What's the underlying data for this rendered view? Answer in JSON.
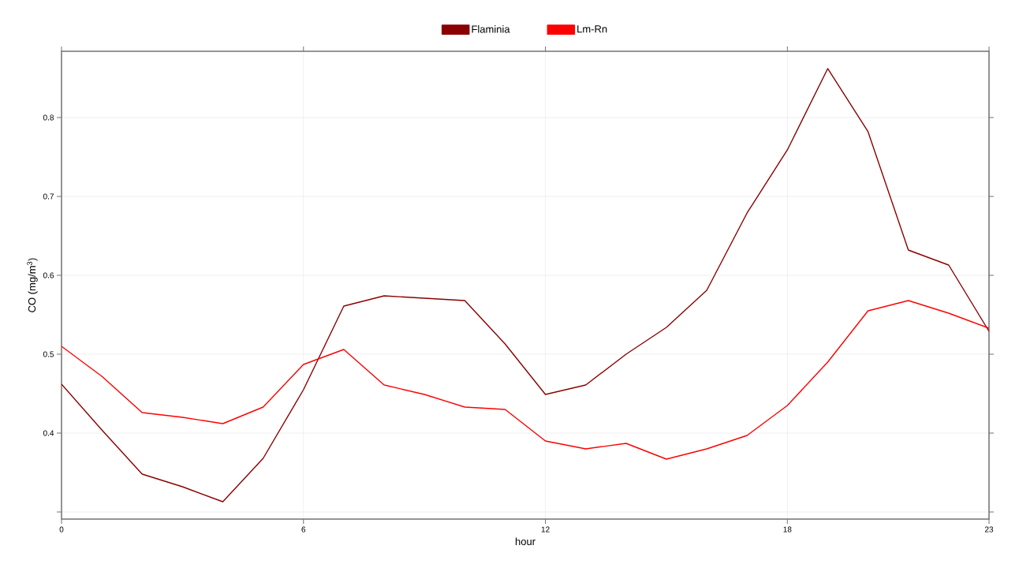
{
  "chart_data": {
    "type": "line",
    "xlabel": "hour",
    "ylabel": "CO (mg/m$^{3}$)",
    "x": [
      0,
      1,
      2,
      3,
      4,
      5,
      6,
      7,
      8,
      9,
      10,
      11,
      12,
      13,
      14,
      15,
      16,
      17,
      18,
      19,
      20,
      21,
      22,
      23
    ],
    "series": [
      {
        "name": "Flaminia",
        "color": "#8b0000",
        "values": [
          0.462,
          0.404,
          0.348,
          0.332,
          0.313,
          0.368,
          0.455,
          0.561,
          0.574,
          0.571,
          0.568,
          0.513,
          0.449,
          0.461,
          0.5,
          0.534,
          0.581,
          0.679,
          0.759,
          0.862,
          0.782,
          0.632,
          0.613,
          0.529
        ]
      },
      {
        "name": "Lm-Rn",
        "color": "#ff0000",
        "values": [
          0.51,
          0.472,
          0.426,
          0.42,
          0.412,
          0.433,
          0.487,
          0.506,
          0.461,
          0.449,
          0.433,
          0.43,
          0.39,
          0.38,
          0.387,
          0.367,
          0.38,
          0.397,
          0.435,
          0.49,
          0.555,
          0.568,
          0.552,
          0.533
        ]
      }
    ],
    "xlim": [
      0,
      23
    ],
    "ylim": [
      0.291,
      0.884
    ],
    "xticks": [
      0,
      6,
      12,
      18,
      23
    ],
    "yticks": [
      {
        "value": 0.3,
        "label": null
      },
      0.4,
      0.5,
      0.6,
      0.7,
      0.8
    ],
    "grid": true,
    "legend": "top",
    "marker": "none",
    "line_style": "solid"
  }
}
